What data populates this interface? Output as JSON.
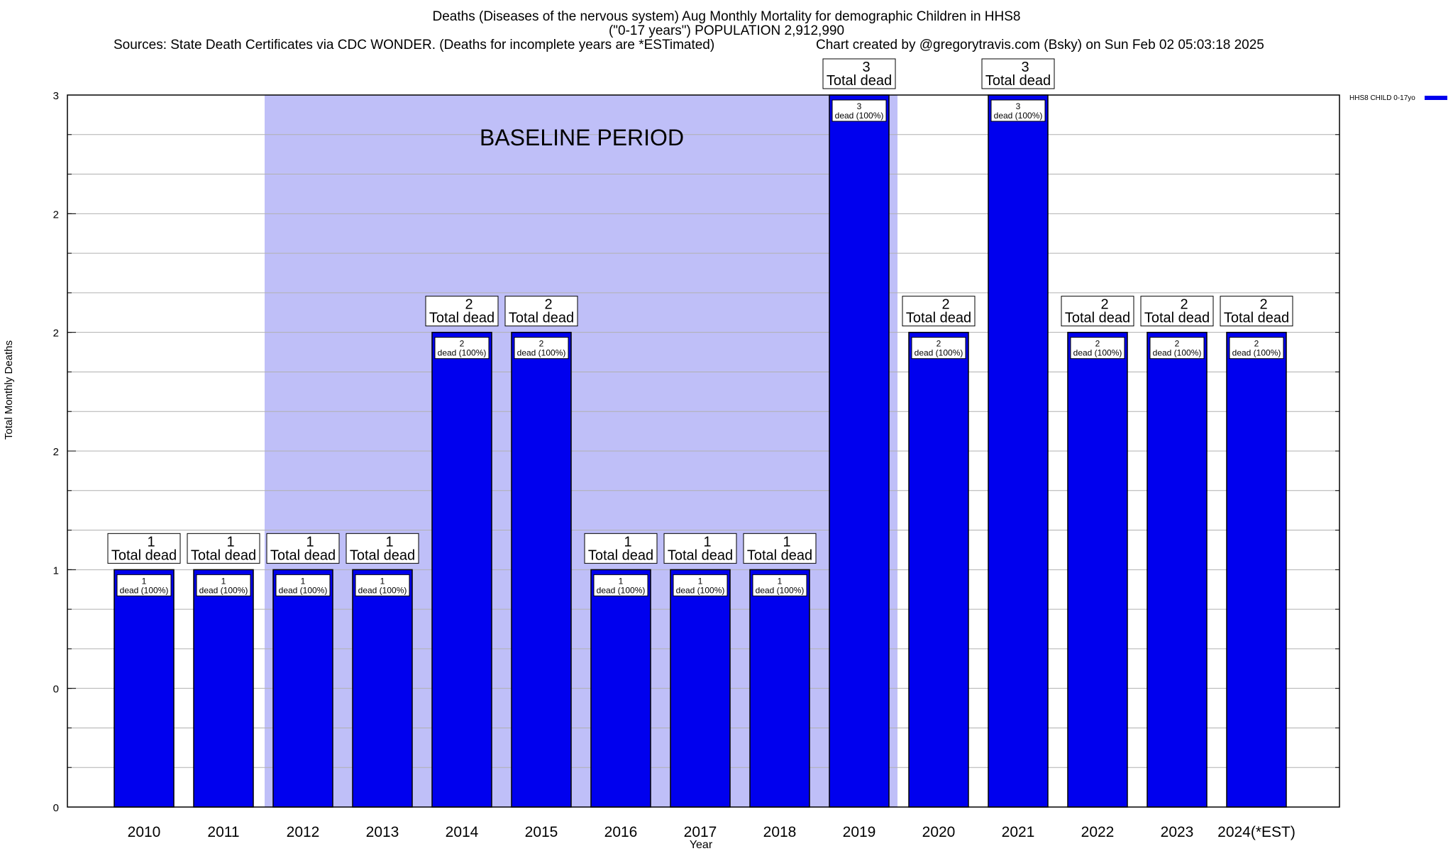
{
  "header": {
    "title_line1": "Deaths (Diseases of the nervous system) Aug Monthly Mortality for demographic Children in HHS8",
    "title_line2": "(\"0-17 years\") POPULATION 2,912,990",
    "source": "Sources: State Death Certificates via CDC WONDER. (Deaths for incomplete years are *ESTimated)",
    "credit": "Chart created by @gregorytravis.com (Bsky) on Sun Feb 02 05:03:18 2025"
  },
  "colors": {
    "bar": "#0000ee",
    "baseline_shade": "#bfbff8",
    "grid": "#b0b0b0"
  },
  "chart_data": {
    "type": "bar",
    "title": "Deaths (Diseases of the nervous system) Aug Monthly Mortality for demographic Children in HHS8",
    "xlabel": "Year",
    "ylabel": "Total Monthly Deaths",
    "categories": [
      "2010",
      "2011",
      "2012",
      "2013",
      "2014",
      "2015",
      "2016",
      "2017",
      "2018",
      "2019",
      "2020",
      "2021",
      "2022",
      "2023",
      "2024(*EST)"
    ],
    "series": [
      {
        "name": "HHS8 CHILD 0-17yo",
        "values": [
          1,
          1,
          1,
          1,
          2,
          2,
          1,
          1,
          1,
          3,
          2,
          3,
          2,
          2,
          2
        ]
      }
    ],
    "ylim": [
      0,
      3
    ],
    "ytick_values": [
      0,
      0.5,
      1,
      1.5,
      2,
      2.5,
      3
    ],
    "ytick_labels": [
      "0",
      "0",
      "1",
      "2",
      "2",
      "2",
      "3"
    ],
    "total_label": "Total dead",
    "bar_inner_label": "dead (100%)",
    "baseline": {
      "label": "BASELINE PERIOD",
      "from": "2012",
      "to": "2019"
    },
    "legend_position": "top-right",
    "grid": true
  }
}
